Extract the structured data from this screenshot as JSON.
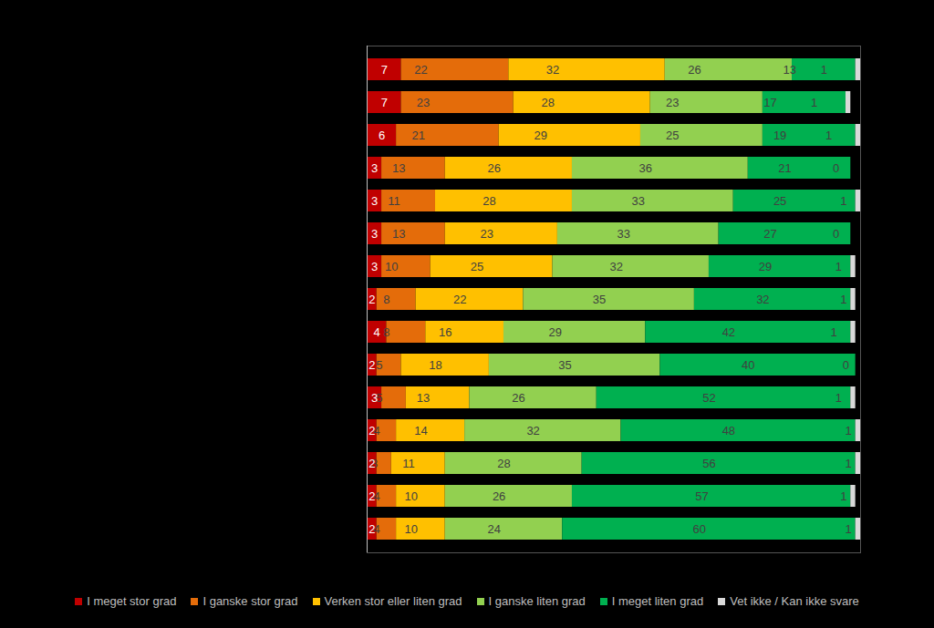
{
  "chart_data": {
    "type": "bar",
    "orientation": "horizontal",
    "stacked": true,
    "data_labels": true,
    "tick_labels": false,
    "categories": [
      null,
      null,
      null,
      null,
      null,
      null,
      null,
      null,
      null,
      null,
      null,
      null,
      null,
      null,
      null
    ],
    "xlim": [
      0,
      101
    ],
    "legend": "bottom",
    "series": [
      {
        "name": "I meget stor grad",
        "color": "#C00000",
        "values": [
          7,
          7,
          6,
          3,
          3,
          3,
          3,
          2,
          4,
          2,
          3,
          2,
          2,
          2,
          2
        ]
      },
      {
        "name": "I ganske stor grad",
        "color": "#E46C0A",
        "values": [
          22,
          23,
          21,
          13,
          11,
          13,
          10,
          8,
          8,
          5,
          5,
          4,
          3,
          4,
          4
        ]
      },
      {
        "name": "Verken stor eller liten grad",
        "color": "#FFC000",
        "values": [
          32,
          28,
          29,
          26,
          28,
          23,
          25,
          22,
          16,
          18,
          13,
          14,
          11,
          10,
          10
        ]
      },
      {
        "name": "I ganske liten grad",
        "color": "#92D050",
        "values": [
          26,
          23,
          25,
          36,
          33,
          33,
          32,
          35,
          29,
          35,
          26,
          32,
          28,
          26,
          24
        ]
      },
      {
        "name": "I meget liten grad",
        "color": "#00B050",
        "values": [
          13,
          17,
          19,
          21,
          25,
          27,
          29,
          32,
          42,
          40,
          52,
          48,
          56,
          57,
          60
        ]
      },
      {
        "name": "Vet ikke / Kan ikke svare",
        "color": "#D9D9D9",
        "values": [
          1,
          1,
          1,
          0,
          1,
          0,
          1,
          1,
          1,
          0,
          1,
          1,
          1,
          1,
          1
        ]
      }
    ]
  }
}
